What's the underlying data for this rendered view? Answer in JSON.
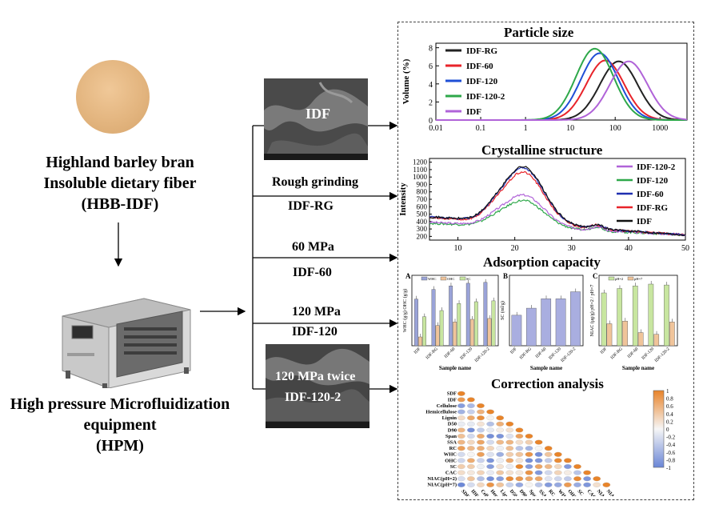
{
  "left": {
    "fiber_name_lines": [
      "Highland barley bran",
      "Insoluble dietary fiber",
      "(HBB-IDF)"
    ],
    "equipment_lines": [
      "High pressure Microfluidization",
      "equipment",
      "(HPM)"
    ]
  },
  "process": {
    "sem_top_label": "IDF",
    "sem_bottom_label": "120 MPa twice",
    "steps": [
      {
        "top": "Rough grinding",
        "bottom": "IDF-RG"
      },
      {
        "top": "60 MPa",
        "bottom": "IDF-60"
      },
      {
        "top": "120 MPa",
        "bottom": "IDF-120"
      },
      {
        "top": "",
        "bottom": "IDF-120-2"
      }
    ]
  },
  "panels": {
    "particle_title": "Particle size",
    "crystal_title": "Crystalline structure",
    "adsorption_title": "Adsorption capacity",
    "correlation_title": "Correction analysis"
  },
  "chart_data": [
    {
      "type": "line",
      "title": "Particle size",
      "xlabel": "",
      "ylabel": "Volume (%)",
      "xscale": "log",
      "xlim": [
        0.01,
        4000
      ],
      "ylim": [
        0,
        8.5
      ],
      "xticks": [
        "0.01",
        "0.1",
        "1",
        "10",
        "100",
        "1000"
      ],
      "yticks": [
        "0",
        "2",
        "4",
        "6",
        "8"
      ],
      "legend_position": "top-left",
      "series": [
        {
          "name": "IDF-RG",
          "color": "#222222",
          "peak_x": 120,
          "peak_y": 6.5
        },
        {
          "name": "IDF-60",
          "color": "#e8232a",
          "peak_x": 60,
          "peak_y": 6.6
        },
        {
          "name": "IDF-120",
          "color": "#1f4fd6",
          "peak_x": 45,
          "peak_y": 7.4
        },
        {
          "name": "IDF-120-2",
          "color": "#2ea84a",
          "peak_x": 35,
          "peak_y": 7.9
        },
        {
          "name": "IDF",
          "color": "#b063d8",
          "peak_x": 200,
          "peak_y": 6.5
        }
      ]
    },
    {
      "type": "line",
      "title": "Crystalline structure",
      "xlabel": "",
      "ylabel": "Intensity",
      "xlim": [
        5,
        50
      ],
      "ylim": [
        150,
        1250
      ],
      "xticks": [
        "10",
        "20",
        "30",
        "40",
        "50"
      ],
      "yticks": [
        "200",
        "300",
        "400",
        "500",
        "600",
        "700",
        "800",
        "900",
        "1000",
        "1100",
        "1200"
      ],
      "legend_position": "right",
      "series": [
        {
          "name": "IDF-120-2",
          "color": "#b063d8",
          "peak": 760
        },
        {
          "name": "IDF-120",
          "color": "#2ea84a",
          "peak": 680
        },
        {
          "name": "IDF-60",
          "color": "#1f2fb0",
          "peak": 1150
        },
        {
          "name": "IDF-RG",
          "color": "#e8232a",
          "peak": 1090
        },
        {
          "name": "IDF",
          "color": "#111111",
          "peak": 1170
        }
      ]
    },
    {
      "type": "bar",
      "panel": "A",
      "categories": [
        "IDF",
        "IDF-RG",
        "IDF-60",
        "IDF-120",
        "IDF-120-2"
      ],
      "xlabel": "Sample name",
      "ylabel": "WHC (g/g)  OHC (g/g)",
      "legend": [
        "WHC",
        "OHC",
        "SC"
      ],
      "series": [
        {
          "name": "WHC",
          "color": "#9aa3d8",
          "values": [
            5.3,
            6.4,
            6.8,
            7.1,
            7.2
          ]
        },
        {
          "name": "OHC",
          "color": "#f0c49a",
          "values": [
            1.0,
            2.3,
            2.7,
            3.0,
            3.1
          ]
        },
        {
          "name": "SC",
          "color": "#c8e6a0",
          "values": [
            3.3,
            4.0,
            4.8,
            5.0,
            5.1
          ]
        }
      ]
    },
    {
      "type": "bar",
      "panel": "B",
      "categories": [
        "IDF",
        "IDF-RG",
        "IDF-60",
        "IDF-120",
        "IDF-120-2"
      ],
      "xlabel": "Sample name",
      "ylabel": "SC (ml/g)",
      "series": [
        {
          "name": "CAC",
          "color": "#a9aee0",
          "values": [
            13,
            16,
            20,
            20,
            23
          ]
        }
      ]
    },
    {
      "type": "bar",
      "panel": "C",
      "categories": [
        "IDF",
        "IDF-RG",
        "IDF-60",
        "IDF-120",
        "IDF-120-2"
      ],
      "xlabel": "Sample name",
      "ylabel": "NIAC (μg/g) pH=2 / pH=7",
      "legend": [
        "pH=2",
        "pH=7"
      ],
      "series": [
        {
          "name": "pH=2",
          "color": "#c8e6a0",
          "values": [
            600,
            650,
            680,
            700,
            690
          ]
        },
        {
          "name": "pH=7",
          "color": "#f0c49a",
          "values": [
            250,
            280,
            150,
            130,
            270
          ]
        }
      ]
    },
    {
      "type": "heatmap",
      "title": "Correction analysis",
      "variables": [
        "SDF",
        "IDF",
        "Cellulose",
        "Hemicellulose",
        "Lignin",
        "D50",
        "D90",
        "Span",
        "SSA",
        "RC",
        "WHC",
        "OHC",
        "SC",
        "CAC",
        "NIAC(pH=2)",
        "NIAC(pH=7)"
      ],
      "scale_ticks": [
        "1",
        "0.8",
        "0.6",
        "0.4",
        "0.2",
        "0",
        "-0.2",
        "-0.4",
        "-0.6",
        "-0.8",
        "-1"
      ],
      "scale_colors": {
        "positive": "#e8842a",
        "neutral": "#f6f6f6",
        "negative": "#6a86d6"
      },
      "legend_position": "top-right"
    }
  ]
}
